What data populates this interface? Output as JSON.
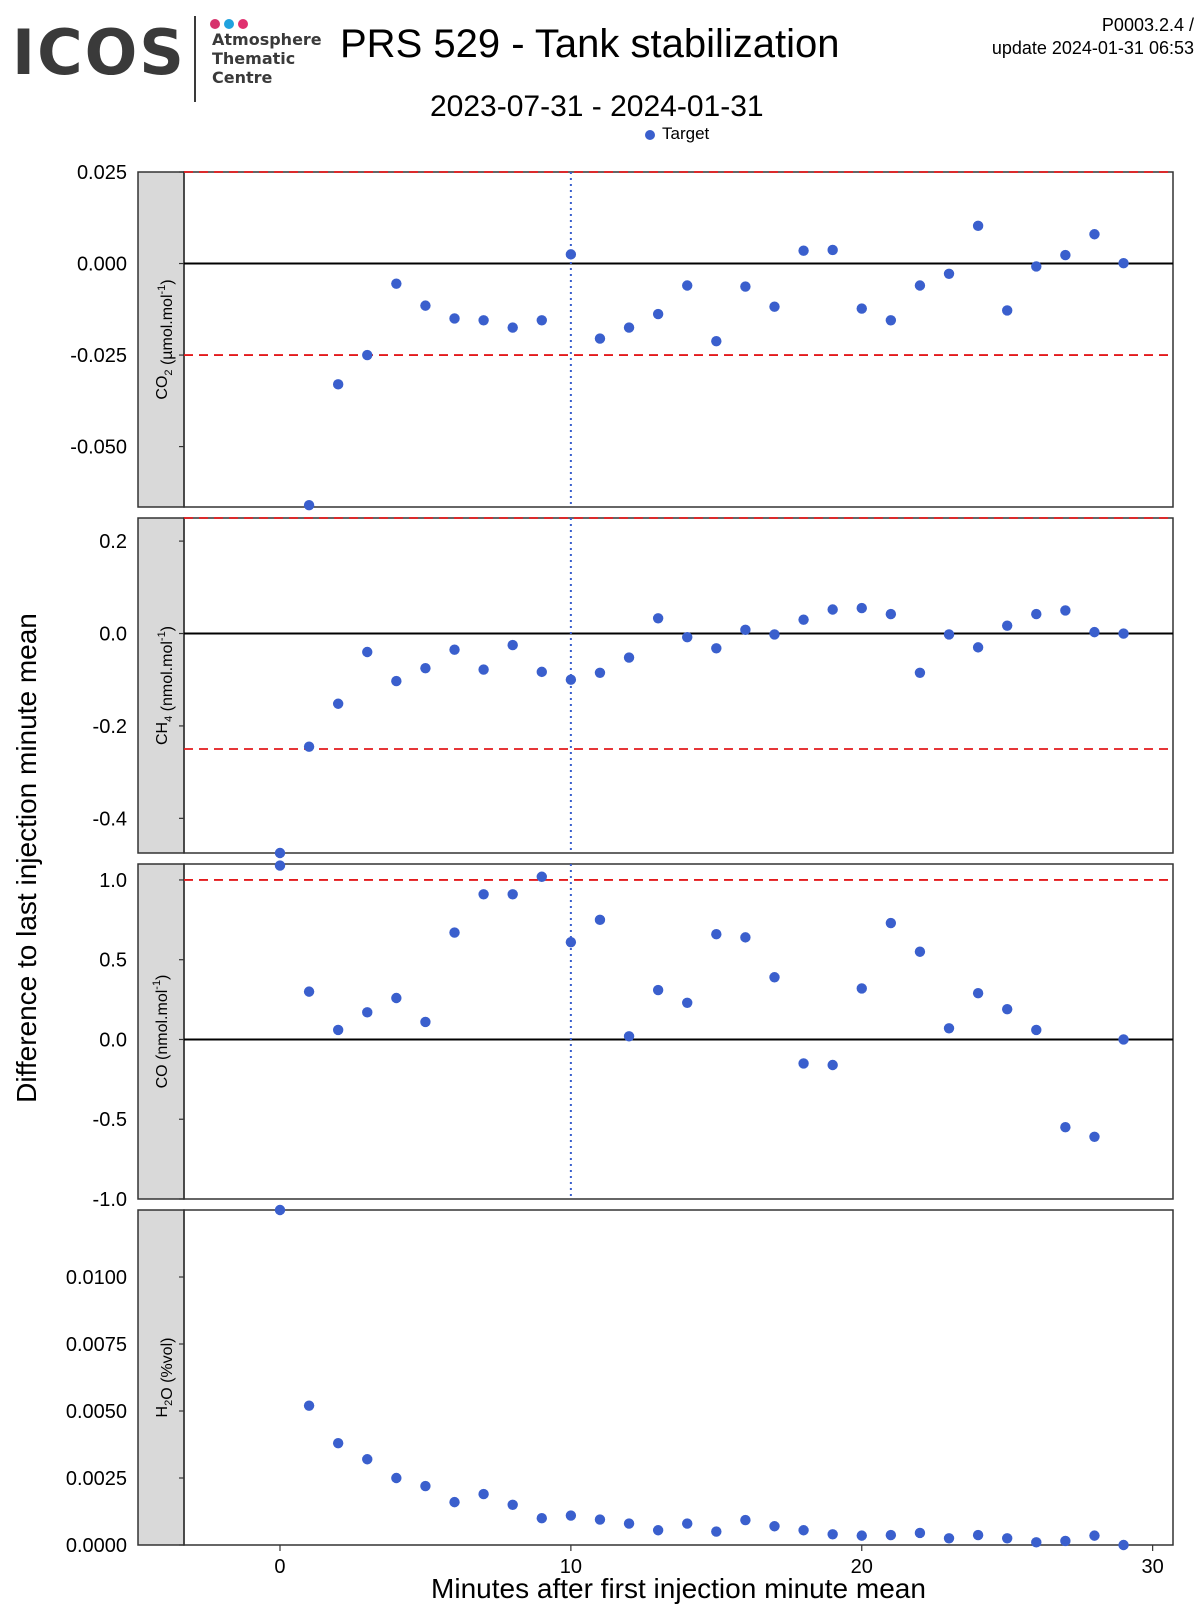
{
  "header": {
    "logo_text": "ICOS",
    "logo_sub": [
      "Atmosphere",
      "Thematic",
      "Centre"
    ],
    "logo_dot_colors": [
      "#d6336c",
      "#1fa2de",
      "#e0306f"
    ],
    "title": "PRS 529 - Tank stabilization",
    "date_range": "2023-07-31 - 2024-01-31",
    "version": "P0003.2.4 /",
    "update": "update  2024-01-31 06:53"
  },
  "legend": {
    "label": "Target"
  },
  "colors": {
    "point": "#3a5fcd",
    "threshold": "#e31a1c",
    "zero": "#000000",
    "vline": "#3a5fcd",
    "strip": "#d9d9d9"
  },
  "chart_data": {
    "type": "scatter",
    "xlabel": "Minutes after first injection minute mean",
    "ylabel": "Difference to last injection minute mean",
    "xlim": [
      -3.3,
      30.7
    ],
    "xticks": [
      0,
      10,
      20,
      30
    ],
    "vertical_line_x": 10,
    "x": [
      0,
      1,
      2,
      3,
      4,
      5,
      6,
      7,
      8,
      9,
      10,
      11,
      12,
      13,
      14,
      15,
      16,
      17,
      18,
      19,
      20,
      21,
      22,
      23,
      24,
      25,
      26,
      27,
      28,
      29
    ],
    "panels": [
      {
        "strip": "CO",
        "strip_sub": "2",
        "strip_unit": " (µmol.mol",
        "strip_sup": "-1",
        "ylim": [
          -0.0665,
          0.025
        ],
        "yticks": [
          0.025,
          0.0,
          -0.025,
          -0.05
        ],
        "ytick_labels": [
          "0.025",
          "0.000",
          "-0.025",
          "-0.050"
        ],
        "thresholds": [
          0.025,
          -0.025
        ],
        "zero_line": true,
        "series": [
          {
            "name": "Target",
            "values": [
              null,
              -0.066,
              -0.033,
              -0.025,
              -0.0055,
              -0.0115,
              -0.015,
              -0.0155,
              -0.0175,
              -0.0155,
              0.0025,
              -0.0205,
              -0.0175,
              -0.0138,
              -0.006,
              -0.0212,
              -0.0063,
              -0.0118,
              0.0035,
              0.0037,
              -0.0123,
              -0.0155,
              -0.006,
              -0.0028,
              0.0103,
              -0.0128,
              -0.0008,
              0.0023,
              0.008,
              0.0001
            ]
          }
        ]
      },
      {
        "strip": "CH",
        "strip_sub": "4",
        "strip_unit": " (nmol.mol",
        "strip_sup": "-1",
        "ylim": [
          -0.475,
          0.25
        ],
        "yticks": [
          0.2,
          0.0,
          -0.2,
          -0.4
        ],
        "ytick_labels": [
          "0.2",
          "0.0",
          "-0.2",
          "-0.4"
        ],
        "thresholds": [
          0.25,
          -0.25
        ],
        "zero_line": true,
        "series": [
          {
            "name": "Target",
            "values": [
              -0.475,
              -0.245,
              -0.152,
              -0.04,
              -0.103,
              -0.075,
              -0.035,
              -0.078,
              -0.025,
              -0.083,
              -0.1,
              -0.085,
              -0.052,
              0.033,
              -0.008,
              -0.032,
              0.008,
              -0.002,
              0.03,
              0.052,
              0.055,
              0.042,
              -0.085,
              -0.002,
              -0.03,
              0.017,
              0.042,
              0.05,
              0.003,
              0.0
            ]
          }
        ]
      },
      {
        "strip": "CO",
        "strip_sub": "",
        "strip_unit": " (nmol.mol",
        "strip_sup": "-1",
        "ylim": [
          -1.0,
          1.1
        ],
        "yticks": [
          1.0,
          0.5,
          0.0,
          -0.5,
          -1.0
        ],
        "ytick_labels": [
          "1.0",
          "0.5",
          "0.0",
          "-0.5",
          "-1.0"
        ],
        "thresholds": [
          1.0
        ],
        "zero_line": true,
        "series": [
          {
            "name": "Target",
            "values": [
              1.09,
              0.3,
              0.06,
              0.17,
              0.26,
              0.11,
              0.67,
              0.91,
              0.91,
              1.02,
              0.61,
              0.75,
              0.02,
              0.31,
              0.23,
              0.66,
              0.64,
              0.39,
              -0.15,
              -0.16,
              0.32,
              0.73,
              0.55,
              0.07,
              0.29,
              0.19,
              0.06,
              -0.55,
              -0.61,
              0.0
            ]
          }
        ]
      },
      {
        "strip": "H",
        "strip_sub": "2",
        "strip_unit": "O (%vol)",
        "strip_sup": "",
        "ylim": [
          0.0,
          0.0125
        ],
        "yticks": [
          0.01,
          0.0075,
          0.005,
          0.0025,
          0.0
        ],
        "ytick_labels": [
          "0.0100",
          "0.0075",
          "0.0050",
          "0.0025",
          "0.0000"
        ],
        "thresholds": [],
        "zero_line": false,
        "series": [
          {
            "name": "Target",
            "values": [
              0.0125,
              0.0052,
              0.0038,
              0.0032,
              0.0025,
              0.0022,
              0.0016,
              0.0019,
              0.0015,
              0.001,
              0.0011,
              0.00095,
              0.0008,
              0.00055,
              0.0008,
              0.0005,
              0.00093,
              0.0007,
              0.00055,
              0.0004,
              0.00035,
              0.00037,
              0.00045,
              0.00025,
              0.00037,
              0.00025,
              0.0001,
              0.00015,
              0.00035,
              0.0
            ]
          }
        ]
      }
    ]
  }
}
